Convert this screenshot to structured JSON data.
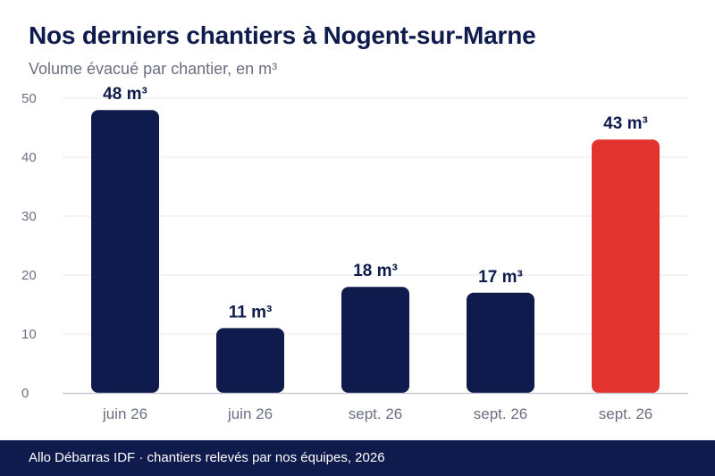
{
  "header": {
    "title": "Nos derniers chantiers à Nogent-sur-Marne",
    "subtitle": "Volume évacué par chantier, en m³"
  },
  "footer": {
    "source": "Allo Débarras IDF · chantiers relevés par nos équipes, 2026"
  },
  "colors": {
    "primary": "#0f1b4c",
    "highlight": "#e3332f",
    "grid": "#e9e9ee",
    "axis": "#c9cad6",
    "tick_text": "#6b6f82"
  },
  "chart_data": {
    "type": "bar",
    "title": "Nos derniers chantiers à Nogent-sur-Marne",
    "subtitle": "Volume évacué par chantier, en m³",
    "categories": [
      "juin 26",
      "juin 26",
      "sept. 26",
      "sept. 26",
      "sept. 26"
    ],
    "values": [
      48,
      11,
      18,
      17,
      43
    ],
    "value_labels": [
      "48 m³",
      "11 m³",
      "18 m³",
      "17 m³",
      "43 m³"
    ],
    "highlight_index": 4,
    "xlabel": "",
    "ylabel": "",
    "ylim": [
      0,
      50
    ],
    "yticks": [
      0,
      10,
      20,
      30,
      40,
      50
    ],
    "grid": true,
    "legend": "none"
  }
}
